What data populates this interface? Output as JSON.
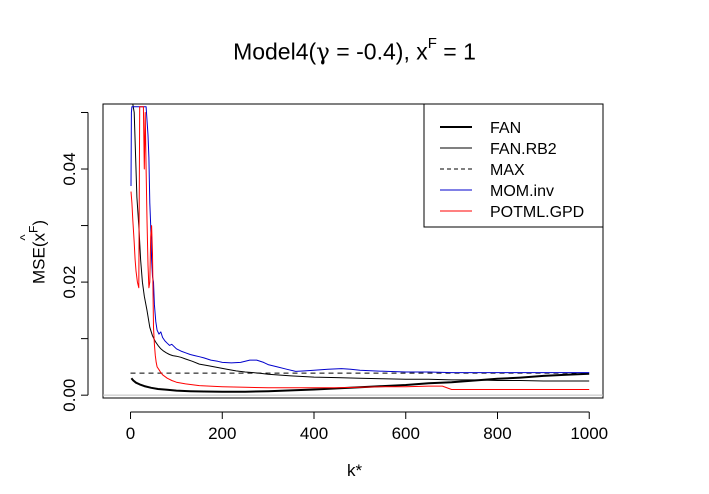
{
  "chart_data": {
    "type": "line",
    "title": {
      "prefix": "Model4",
      "gamma_symbol": "γ",
      "equals": " = ",
      "gamma_value": "-0.4",
      "sep": "), x",
      "x_sup": "F",
      "tail": " = 1"
    },
    "xlabel": "k*",
    "ylabel": {
      "prefix": "MSE",
      "hat_var": "x",
      "sup": "F"
    },
    "xlim": [
      -60,
      1030
    ],
    "ylim": [
      -0.0005,
      0.0515
    ],
    "xticks": [
      0,
      200,
      400,
      600,
      800,
      1000
    ],
    "xtick_labels": [
      "0",
      "200",
      "400",
      "600",
      "800",
      "1000"
    ],
    "yticks": [
      0.0,
      0.01,
      0.02,
      0.03,
      0.04,
      0.05
    ],
    "ytick_labels": [
      "0.00",
      "",
      "0.02",
      "",
      "0.04",
      ""
    ],
    "hline": {
      "y": 0,
      "color": "#bebebe"
    },
    "legend": {
      "position": "top-right",
      "entries": [
        {
          "label": "FAN",
          "color": "#000000",
          "style": "solid",
          "width": 2
        },
        {
          "label": "FAN.RB2",
          "color": "#000000",
          "style": "solid",
          "width": 1
        },
        {
          "label": "MAX",
          "color": "#000000",
          "style": "dashed",
          "width": 1
        },
        {
          "label": "MOM.inv",
          "color": "#0000cc",
          "style": "solid",
          "width": 1
        },
        {
          "label": "POTML.GPD",
          "color": "#ff0000",
          "style": "solid",
          "width": 1
        }
      ]
    },
    "series": [
      {
        "name": "FAN",
        "color": "#000000",
        "width": 2,
        "style": "solid",
        "x": [
          2,
          6,
          12,
          20,
          30,
          45,
          60,
          80,
          100,
          130,
          160,
          200,
          250,
          300,
          350,
          400,
          450,
          500,
          550,
          600,
          650,
          700,
          750,
          800,
          850,
          900,
          950,
          1000
        ],
        "y": [
          0.003,
          0.0026,
          0.0022,
          0.0019,
          0.0016,
          0.0013,
          0.0011,
          0.00095,
          0.0008,
          0.0007,
          0.00065,
          0.0006,
          0.00062,
          0.0007,
          0.00085,
          0.001,
          0.0012,
          0.0014,
          0.0016,
          0.0018,
          0.0021,
          0.0023,
          0.0026,
          0.0029,
          0.0031,
          0.0034,
          0.0036,
          0.0038
        ]
      },
      {
        "name": "FAN.RB2",
        "color": "#000000",
        "width": 1,
        "style": "solid",
        "x": [
          5,
          8,
          10,
          14,
          18,
          22,
          26,
          30,
          36,
          42,
          48,
          54,
          60,
          66,
          72,
          78,
          85,
          92,
          100,
          110,
          120,
          135,
          150,
          170,
          190,
          210,
          230,
          250,
          280,
          300,
          350,
          400,
          450,
          500,
          550,
          600,
          650,
          700,
          750,
          800,
          850,
          900,
          950,
          1000
        ],
        "y": [
          0.0515,
          0.05,
          0.045,
          0.035,
          0.03,
          0.024,
          0.02,
          0.0175,
          0.015,
          0.012,
          0.0105,
          0.0095,
          0.0088,
          0.0082,
          0.0078,
          0.0075,
          0.0072,
          0.007,
          0.0069,
          0.0067,
          0.0064,
          0.006,
          0.0055,
          0.0052,
          0.0049,
          0.0046,
          0.0043,
          0.0041,
          0.0039,
          0.0037,
          0.0034,
          0.0032,
          0.0031,
          0.003,
          0.0029,
          0.0028,
          0.0028,
          0.0027,
          0.0027,
          0.0026,
          0.0026,
          0.0025,
          0.0025,
          0.0025
        ]
      },
      {
        "name": "MAX",
        "color": "#000000",
        "width": 1,
        "style": "dashed",
        "x": [
          0,
          1000
        ],
        "y": [
          0.0039,
          0.0039
        ]
      },
      {
        "name": "MOM.inv",
        "color": "#0000cc",
        "width": 1,
        "style": "solid",
        "x": [
          1,
          2,
          3,
          4,
          6,
          10,
          15,
          18,
          22,
          26,
          30,
          34,
          38,
          40,
          42,
          44,
          46,
          48,
          50,
          52,
          55,
          58,
          62,
          66,
          70,
          75,
          80,
          85,
          90,
          100,
          110,
          120,
          130,
          140,
          150,
          160,
          175,
          190,
          200,
          220,
          240,
          260,
          275,
          290,
          300,
          320,
          340,
          360,
          380,
          400,
          430,
          460,
          480,
          500,
          530,
          560,
          600,
          650,
          700,
          750,
          800,
          850,
          900,
          950,
          1000
        ],
        "y": [
          0.037,
          0.05,
          0.051,
          0.051,
          0.051,
          0.051,
          0.051,
          0.051,
          0.051,
          0.051,
          0.051,
          0.051,
          0.046,
          0.042,
          0.034,
          0.03,
          0.024,
          0.021,
          0.02,
          0.016,
          0.013,
          0.0115,
          0.0108,
          0.0112,
          0.0102,
          0.0096,
          0.0092,
          0.0088,
          0.009,
          0.0082,
          0.0078,
          0.0075,
          0.0072,
          0.007,
          0.0068,
          0.0066,
          0.0062,
          0.006,
          0.0058,
          0.0057,
          0.0058,
          0.0062,
          0.0062,
          0.0058,
          0.0054,
          0.005,
          0.0046,
          0.0042,
          0.0043,
          0.0044,
          0.0046,
          0.0047,
          0.0046,
          0.0044,
          0.0043,
          0.0042,
          0.0041,
          0.0041,
          0.004,
          0.004,
          0.004,
          0.004,
          0.004,
          0.004,
          0.004
        ]
      },
      {
        "name": "POTML.GPD",
        "color": "#ff0000",
        "width": 1,
        "style": "solid",
        "x": [
          1,
          3,
          5,
          8,
          10,
          12,
          15,
          18,
          20,
          24,
          28,
          30,
          32,
          34,
          36,
          38,
          40,
          42,
          44,
          46,
          48,
          50,
          52,
          54,
          56,
          58,
          62,
          66,
          70,
          80,
          90,
          100,
          120,
          150,
          200,
          250,
          300,
          350,
          400,
          450,
          500,
          550,
          600,
          650,
          680,
          700,
          750,
          800,
          850,
          900,
          950,
          1000
        ],
        "y": [
          0.036,
          0.034,
          0.031,
          0.027,
          0.024,
          0.022,
          0.02,
          0.019,
          0.051,
          0.051,
          0.051,
          0.04,
          0.05,
          0.04,
          0.031,
          0.023,
          0.019,
          0.02,
          0.028,
          0.03,
          0.025,
          0.012,
          0.009,
          0.007,
          0.0058,
          0.005,
          0.0045,
          0.004,
          0.0036,
          0.003,
          0.0026,
          0.0023,
          0.002,
          0.0017,
          0.0015,
          0.0014,
          0.0013,
          0.0013,
          0.0013,
          0.0013,
          0.0014,
          0.0015,
          0.0015,
          0.0016,
          0.0016,
          0.001,
          0.001,
          0.001,
          0.001,
          0.001,
          0.001,
          0.001
        ]
      }
    ]
  }
}
